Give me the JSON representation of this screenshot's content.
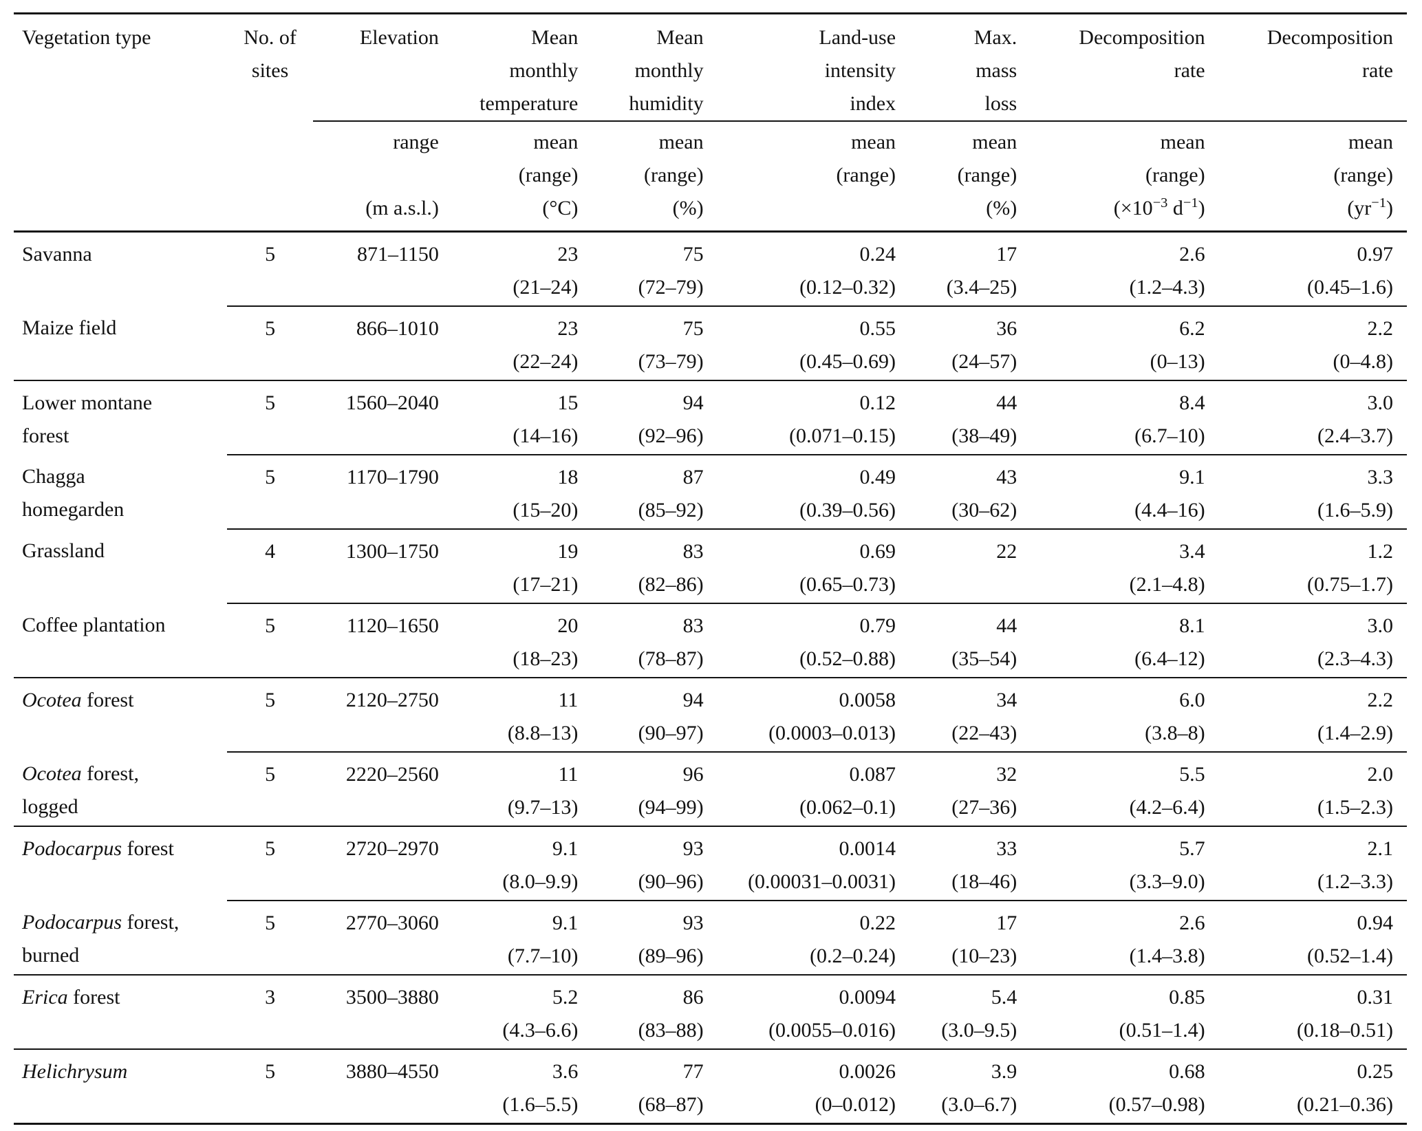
{
  "table": {
    "columns": [
      {
        "id": "vegetation",
        "align": "left",
        "header_lines": [
          "Vegetation type"
        ],
        "units": []
      },
      {
        "id": "sites",
        "align": "center",
        "header_lines": [
          "No. of",
          "sites"
        ],
        "units": []
      },
      {
        "id": "elevation",
        "align": "right",
        "header_lines": [
          "Elevation"
        ],
        "units": [
          "range",
          "",
          "(m a.s.l.)"
        ]
      },
      {
        "id": "temperature",
        "align": "right",
        "header_lines": [
          "Mean",
          "monthly",
          "temperature"
        ],
        "units": [
          "mean",
          "(range)",
          "(°C)"
        ]
      },
      {
        "id": "humidity",
        "align": "right",
        "header_lines": [
          "Mean",
          "monthly",
          "humidity"
        ],
        "units": [
          "mean",
          "(range)",
          "(%)"
        ]
      },
      {
        "id": "land-use",
        "align": "right",
        "header_lines": [
          "Land-use",
          "intensity",
          "index"
        ],
        "units": [
          "mean",
          "(range)",
          ""
        ]
      },
      {
        "id": "max-mass-loss",
        "align": "right",
        "header_lines": [
          "Max.",
          "mass",
          "loss"
        ],
        "units": [
          "mean",
          "(range)",
          "(%)"
        ]
      },
      {
        "id": "decomposition-d",
        "align": "right",
        "header_lines": [
          "Decomposition",
          "rate"
        ],
        "units": [
          "mean",
          "(range)",
          "(×10^{−3} d^{−1})"
        ]
      },
      {
        "id": "decomposition-yr",
        "align": "right",
        "header_lines": [
          "Decomposition",
          "rate"
        ],
        "units": [
          "mean",
          "(range)",
          "(yr^{−1})"
        ]
      }
    ],
    "rows": [
      {
        "name": {
          "italic": "",
          "text": "Savanna",
          "line2": ""
        },
        "sites": "5",
        "rule_above": "none",
        "values": [
          [
            "871–1150",
            ""
          ],
          [
            "23",
            "(21–24)"
          ],
          [
            "75",
            "(72–79)"
          ],
          [
            "0.24",
            "(0.12–0.32)"
          ],
          [
            "17",
            "(3.4–25)"
          ],
          [
            "2.6",
            "(1.2–4.3)"
          ],
          [
            "0.97",
            "(0.45–1.6)"
          ]
        ]
      },
      {
        "name": {
          "italic": "",
          "text": "Maize field",
          "line2": ""
        },
        "sites": "5",
        "rule_above": "partial",
        "values": [
          [
            "866–1010",
            ""
          ],
          [
            "23",
            "(22–24)"
          ],
          [
            "75",
            "(73–79)"
          ],
          [
            "0.55",
            "(0.45–0.69)"
          ],
          [
            "36",
            "(24–57)"
          ],
          [
            "6.2",
            "(0–13)"
          ],
          [
            "2.2",
            "(0–4.8)"
          ]
        ]
      },
      {
        "name": {
          "italic": "",
          "text": "Lower montane",
          "line2": "forest"
        },
        "sites": "5",
        "rule_above": "full",
        "values": [
          [
            "1560–2040",
            ""
          ],
          [
            "15",
            "(14–16)"
          ],
          [
            "94",
            "(92–96)"
          ],
          [
            "0.12",
            "(0.071–0.15)"
          ],
          [
            "44",
            "(38–49)"
          ],
          [
            "8.4",
            "(6.7–10)"
          ],
          [
            "3.0",
            "(2.4–3.7)"
          ]
        ]
      },
      {
        "name": {
          "italic": "",
          "text": "Chagga",
          "line2": "homegarden"
        },
        "sites": "5",
        "rule_above": "partial",
        "values": [
          [
            "1170–1790",
            ""
          ],
          [
            "18",
            "(15–20)"
          ],
          [
            "87",
            "(85–92)"
          ],
          [
            "0.49",
            "(0.39–0.56)"
          ],
          [
            "43",
            "(30–62)"
          ],
          [
            "9.1",
            "(4.4–16)"
          ],
          [
            "3.3",
            "(1.6–5.9)"
          ]
        ]
      },
      {
        "name": {
          "italic": "",
          "text": "Grassland",
          "line2": ""
        },
        "sites": "4",
        "rule_above": "partial",
        "values": [
          [
            "1300–1750",
            ""
          ],
          [
            "19",
            "(17–21)"
          ],
          [
            "83",
            "(82–86)"
          ],
          [
            "0.69",
            "(0.65–0.73)"
          ],
          [
            "22",
            ""
          ],
          [
            "3.4",
            "(2.1–4.8)"
          ],
          [
            "1.2",
            "(0.75–1.7)"
          ]
        ]
      },
      {
        "name": {
          "italic": "",
          "text": "Coffee plantation",
          "line2": ""
        },
        "sites": "5",
        "rule_above": "partial",
        "values": [
          [
            "1120–1650",
            ""
          ],
          [
            "20",
            "(18–23)"
          ],
          [
            "83",
            "(78–87)"
          ],
          [
            "0.79",
            "(0.52–0.88)"
          ],
          [
            "44",
            "(35–54)"
          ],
          [
            "8.1",
            "(6.4–12)"
          ],
          [
            "3.0",
            "(2.3–4.3)"
          ]
        ]
      },
      {
        "name": {
          "italic": "Ocotea",
          "text": " forest",
          "line2": ""
        },
        "sites": "5",
        "rule_above": "full",
        "values": [
          [
            "2120–2750",
            ""
          ],
          [
            "11",
            "(8.8–13)"
          ],
          [
            "94",
            "(90–97)"
          ],
          [
            "0.0058",
            "(0.0003–0.013)"
          ],
          [
            "34",
            "(22–43)"
          ],
          [
            "6.0",
            "(3.8–8)"
          ],
          [
            "2.2",
            "(1.4–2.9)"
          ]
        ]
      },
      {
        "name": {
          "italic": "Ocotea",
          "text": " forest,",
          "line2": "logged"
        },
        "sites": "5",
        "rule_above": "partial",
        "values": [
          [
            "2220–2560",
            ""
          ],
          [
            "11",
            "(9.7–13)"
          ],
          [
            "96",
            "(94–99)"
          ],
          [
            "0.087",
            "(0.062–0.1)"
          ],
          [
            "32",
            "(27–36)"
          ],
          [
            "5.5",
            "(4.2–6.4)"
          ],
          [
            "2.0",
            "(1.5–2.3)"
          ]
        ]
      },
      {
        "name": {
          "italic": "Podocarpus",
          "text": " forest",
          "line2": ""
        },
        "sites": "5",
        "rule_above": "full",
        "values": [
          [
            "2720–2970",
            ""
          ],
          [
            "9.1",
            "(8.0–9.9)"
          ],
          [
            "93",
            "(90–96)"
          ],
          [
            "0.0014",
            "(0.00031–0.0031)"
          ],
          [
            "33",
            "(18–46)"
          ],
          [
            "5.7",
            "(3.3–9.0)"
          ],
          [
            "2.1",
            "(1.2–3.3)"
          ]
        ]
      },
      {
        "name": {
          "italic": "Podocarpus",
          "text": " forest,",
          "line2": "burned"
        },
        "sites": "5",
        "rule_above": "partial",
        "values": [
          [
            "2770–3060",
            ""
          ],
          [
            "9.1",
            "(7.7–10)"
          ],
          [
            "93",
            "(89–96)"
          ],
          [
            "0.22",
            "(0.2–0.24)"
          ],
          [
            "17",
            "(10–23)"
          ],
          [
            "2.6",
            "(1.4–3.8)"
          ],
          [
            "0.94",
            "(0.52–1.4)"
          ]
        ]
      },
      {
        "name": {
          "italic": "Erica",
          "text": " forest",
          "line2": ""
        },
        "sites": "3",
        "rule_above": "full",
        "values": [
          [
            "3500–3880",
            ""
          ],
          [
            "5.2",
            "(4.3–6.6)"
          ],
          [
            "86",
            "(83–88)"
          ],
          [
            "0.0094",
            "(0.0055–0.016)"
          ],
          [
            "5.4",
            "(3.0–9.5)"
          ],
          [
            "0.85",
            "(0.51–1.4)"
          ],
          [
            "0.31",
            "(0.18–0.51)"
          ]
        ]
      },
      {
        "name": {
          "italic": "Helichrysum",
          "text": "",
          "line2": ""
        },
        "sites": "5",
        "rule_above": "full",
        "values": [
          [
            "3880–4550",
            ""
          ],
          [
            "3.6",
            "(1.6–5.5)"
          ],
          [
            "77",
            "(68–87)"
          ],
          [
            "0.0026",
            "(0–0.012)"
          ],
          [
            "3.9",
            "(3.0–6.7)"
          ],
          [
            "0.68",
            "(0.57–0.98)"
          ],
          [
            "0.25",
            "(0.21–0.36)"
          ]
        ]
      }
    ]
  }
}
